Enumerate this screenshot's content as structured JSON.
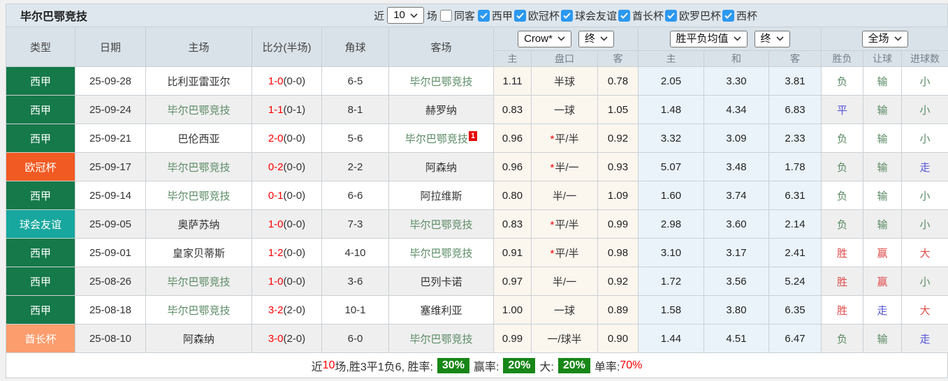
{
  "topbar": {
    "title": "毕尔巴鄂竞技",
    "recent_label": "近",
    "recent_value": "10",
    "games_label": "场",
    "same_venue": {
      "label": "同客",
      "checked": false
    },
    "checkbox_color": "#2b98f0",
    "competitions": [
      {
        "label": "西甲",
        "checked": true
      },
      {
        "label": "欧冠杯",
        "checked": true
      },
      {
        "label": "球会友谊",
        "checked": true
      },
      {
        "label": "酋长杯",
        "checked": true
      },
      {
        "label": "欧罗巴杯",
        "checked": true
      },
      {
        "label": "西杯",
        "checked": true
      }
    ]
  },
  "header": {
    "cols": [
      "类型",
      "日期",
      "主场",
      "比分(半场)",
      "角球",
      "客场"
    ],
    "odds_company": "Crow*",
    "odds_time": "终",
    "mean_label": "胜平负均值",
    "mean_time": "终",
    "scope": "全场",
    "sub": [
      "主",
      "盘口",
      "客",
      "主",
      "和",
      "客",
      "胜负",
      "让球",
      "进球数"
    ]
  },
  "comp_colors": {
    "西甲": "#15794a",
    "欧冠杯": "#f15a22",
    "球会友谊": "#17a79e",
    "酋长杯": "#fb9d6d"
  },
  "status_colors": {
    "green": "#5a8a64",
    "red": "#e04b4b",
    "blue": "#5353d9"
  },
  "rows": [
    {
      "type": "西甲",
      "date": "25-09-28",
      "home": "比利亚雷亚尔",
      "home_focus": false,
      "ft": "1-0",
      "ht": "(0-0)",
      "corner": "6-5",
      "away": "毕尔巴鄂竞技",
      "away_focus": true,
      "away_sup": "",
      "crow_home": "1.11",
      "handicap": "半球",
      "handicap_star": false,
      "crow_away": "0.78",
      "mean_home": "2.05",
      "mean_draw": "3.30",
      "mean_away": "3.81",
      "spf": {
        "t": "负",
        "c": "green"
      },
      "rq": {
        "t": "输",
        "c": "green"
      },
      "jq": {
        "t": "小",
        "c": "green"
      }
    },
    {
      "type": "西甲",
      "date": "25-09-24",
      "home": "毕尔巴鄂竞技",
      "home_focus": true,
      "ft": "1-1",
      "ht": "(0-1)",
      "corner": "8-1",
      "away": "赫罗纳",
      "away_focus": false,
      "away_sup": "",
      "crow_home": "0.83",
      "handicap": "一球",
      "handicap_star": false,
      "crow_away": "1.05",
      "mean_home": "1.48",
      "mean_draw": "4.34",
      "mean_away": "6.83",
      "spf": {
        "t": "平",
        "c": "blue"
      },
      "rq": {
        "t": "输",
        "c": "green"
      },
      "jq": {
        "t": "小",
        "c": "green"
      }
    },
    {
      "type": "西甲",
      "date": "25-09-21",
      "home": "巴伦西亚",
      "home_focus": false,
      "ft": "2-0",
      "ht": "(0-0)",
      "corner": "5-6",
      "away": "毕尔巴鄂竞技",
      "away_focus": true,
      "away_sup": "1",
      "crow_home": "0.96",
      "handicap": "平/半",
      "handicap_star": true,
      "crow_away": "0.92",
      "mean_home": "3.32",
      "mean_draw": "3.09",
      "mean_away": "2.33",
      "spf": {
        "t": "负",
        "c": "green"
      },
      "rq": {
        "t": "输",
        "c": "green"
      },
      "jq": {
        "t": "小",
        "c": "green"
      }
    },
    {
      "type": "欧冠杯",
      "date": "25-09-17",
      "home": "毕尔巴鄂竞技",
      "home_focus": true,
      "ft": "0-2",
      "ht": "(0-0)",
      "corner": "2-2",
      "away": "阿森纳",
      "away_focus": false,
      "away_sup": "",
      "crow_home": "0.96",
      "handicap": "半/一",
      "handicap_star": true,
      "crow_away": "0.93",
      "mean_home": "5.07",
      "mean_draw": "3.48",
      "mean_away": "1.78",
      "spf": {
        "t": "负",
        "c": "green"
      },
      "rq": {
        "t": "输",
        "c": "green"
      },
      "jq": {
        "t": "走",
        "c": "blue"
      }
    },
    {
      "type": "西甲",
      "date": "25-09-14",
      "home": "毕尔巴鄂竞技",
      "home_focus": true,
      "ft": "0-1",
      "ht": "(0-0)",
      "corner": "6-6",
      "away": "阿拉维斯",
      "away_focus": false,
      "away_sup": "",
      "crow_home": "0.80",
      "handicap": "半/一",
      "handicap_star": false,
      "crow_away": "1.09",
      "mean_home": "1.60",
      "mean_draw": "3.74",
      "mean_away": "6.31",
      "spf": {
        "t": "负",
        "c": "green"
      },
      "rq": {
        "t": "输",
        "c": "green"
      },
      "jq": {
        "t": "小",
        "c": "green"
      }
    },
    {
      "type": "球会友谊",
      "date": "25-09-05",
      "home": "奥萨苏纳",
      "home_focus": false,
      "ft": "1-0",
      "ht": "(0-0)",
      "corner": "7-3",
      "away": "毕尔巴鄂竞技",
      "away_focus": true,
      "away_sup": "",
      "crow_home": "0.83",
      "handicap": "平/半",
      "handicap_star": true,
      "crow_away": "0.99",
      "mean_home": "2.98",
      "mean_draw": "3.60",
      "mean_away": "2.14",
      "spf": {
        "t": "负",
        "c": "green"
      },
      "rq": {
        "t": "输",
        "c": "green"
      },
      "jq": {
        "t": "小",
        "c": "green"
      }
    },
    {
      "type": "西甲",
      "date": "25-09-01",
      "home": "皇家贝蒂斯",
      "home_focus": false,
      "ft": "1-2",
      "ht": "(0-0)",
      "corner": "4-10",
      "away": "毕尔巴鄂竞技",
      "away_focus": true,
      "away_sup": "",
      "crow_home": "0.91",
      "handicap": "平/半",
      "handicap_star": true,
      "crow_away": "0.98",
      "mean_home": "3.10",
      "mean_draw": "3.17",
      "mean_away": "2.41",
      "spf": {
        "t": "胜",
        "c": "red"
      },
      "rq": {
        "t": "赢",
        "c": "red"
      },
      "jq": {
        "t": "大",
        "c": "red"
      }
    },
    {
      "type": "西甲",
      "date": "25-08-26",
      "home": "毕尔巴鄂竞技",
      "home_focus": true,
      "ft": "1-0",
      "ht": "(0-0)",
      "corner": "3-6",
      "away": "巴列卡诺",
      "away_focus": false,
      "away_sup": "",
      "crow_home": "0.97",
      "handicap": "半/一",
      "handicap_star": false,
      "crow_away": "0.92",
      "mean_home": "1.72",
      "mean_draw": "3.56",
      "mean_away": "5.24",
      "spf": {
        "t": "胜",
        "c": "red"
      },
      "rq": {
        "t": "赢",
        "c": "red"
      },
      "jq": {
        "t": "小",
        "c": "green"
      }
    },
    {
      "type": "西甲",
      "date": "25-08-18",
      "home": "毕尔巴鄂竞技",
      "home_focus": true,
      "ft": "3-2",
      "ht": "(2-0)",
      "corner": "10-1",
      "away": "塞维利亚",
      "away_focus": false,
      "away_sup": "",
      "crow_home": "1.00",
      "handicap": "一球",
      "handicap_star": false,
      "crow_away": "0.89",
      "mean_home": "1.58",
      "mean_draw": "3.80",
      "mean_away": "6.35",
      "spf": {
        "t": "胜",
        "c": "red"
      },
      "rq": {
        "t": "走",
        "c": "blue"
      },
      "jq": {
        "t": "大",
        "c": "red"
      }
    },
    {
      "type": "酋长杯",
      "date": "25-08-10",
      "home": "阿森纳",
      "home_focus": false,
      "ft": "3-0",
      "ht": "(2-0)",
      "corner": "6-0",
      "away": "毕尔巴鄂竞技",
      "away_focus": true,
      "away_sup": "",
      "crow_home": "0.99",
      "handicap": "一/球半",
      "handicap_star": false,
      "crow_away": "0.90",
      "mean_home": "1.44",
      "mean_draw": "4.51",
      "mean_away": "6.47",
      "spf": {
        "t": "负",
        "c": "green"
      },
      "rq": {
        "t": "输",
        "c": "green"
      },
      "jq": {
        "t": "走",
        "c": "blue"
      }
    }
  ],
  "summary": {
    "badge_color": "#178717",
    "highlight_color": "#fe0000",
    "parts": [
      {
        "text": "近"
      },
      {
        "text": "10",
        "style": "red"
      },
      {
        "text": "场,胜3平1负6, 胜率:"
      },
      {
        "text": "30%",
        "style": "badge"
      },
      {
        "text": "赢率:"
      },
      {
        "text": "20%",
        "style": "badge"
      },
      {
        "text": "大:"
      },
      {
        "text": "20%",
        "style": "badge"
      },
      {
        "text": "单率:"
      },
      {
        "text": "70%",
        "style": "red"
      }
    ]
  }
}
